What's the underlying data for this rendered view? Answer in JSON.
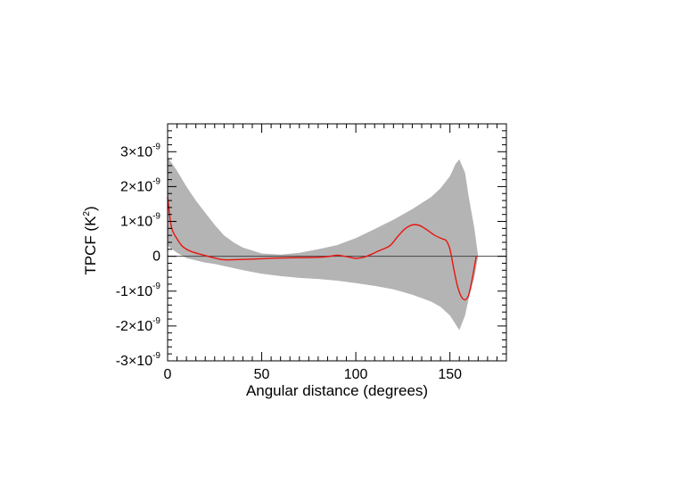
{
  "chart_data": {
    "type": "area",
    "xlabel": "Angular distance (degrees)",
    "ylabel": {
      "text": "TPCF (K",
      "sup": "2",
      "close": ")"
    },
    "xlim": [
      0,
      180
    ],
    "ylim": [
      -3e-09,
      3.8e-09
    ],
    "x_ticks": [
      {
        "value": 0,
        "label": "0"
      },
      {
        "value": 50,
        "label": "50"
      },
      {
        "value": 100,
        "label": "100"
      },
      {
        "value": 150,
        "label": "150"
      }
    ],
    "y_ticks": [
      {
        "value": 3e-09,
        "base": "3×10",
        "exp": "-9"
      },
      {
        "value": 2e-09,
        "base": "2×10",
        "exp": "-9"
      },
      {
        "value": 1e-09,
        "base": "1×10",
        "exp": "-9"
      },
      {
        "value": 0,
        "base": "0",
        "exp": ""
      },
      {
        "value": -1e-09,
        "base": "-1×10",
        "exp": "-9"
      },
      {
        "value": -2e-09,
        "base": "-2×10",
        "exp": "-9"
      },
      {
        "value": -3e-09,
        "base": "-3×10",
        "exp": "-9"
      }
    ],
    "zero_line": true,
    "colors": {
      "band": "#b4b4b4",
      "line": "#e8150f",
      "axis": "#000000",
      "zero_line": "#444444"
    },
    "band": {
      "x": [
        0,
        5,
        10,
        15,
        20,
        25,
        30,
        35,
        40,
        50,
        60,
        70,
        80,
        90,
        100,
        110,
        120,
        130,
        140,
        145,
        150,
        153,
        155,
        158,
        160,
        163,
        165
      ],
      "upper": [
        2.85e-09,
        2.45e-09,
        2e-09,
        1.6e-09,
        1.25e-09,
        9e-10,
        6e-10,
        4e-10,
        2.5e-10,
        8e-11,
        5e-11,
        1e-10,
        2e-10,
        3.2e-10,
        5.2e-10,
        7.8e-10,
        1.05e-09,
        1.35e-09,
        1.7e-09,
        1.95e-09,
        2.3e-09,
        2.65e-09,
        2.78e-09,
        2.4e-09,
        1.7e-09,
        8e-10,
        0.0
      ],
      "lower": [
        3e-10,
        1e-10,
        -5e-11,
        -1.2e-10,
        -1.8e-10,
        -2.2e-10,
        -2.8e-10,
        -3.4e-10,
        -4e-10,
        -5e-10,
        -5.7e-10,
        -6.2e-10,
        -6.5e-10,
        -7e-10,
        -7.7e-10,
        -8.5e-10,
        -9.5e-10,
        -1.1e-09,
        -1.3e-09,
        -1.45e-09,
        -1.7e-09,
        -1.95e-09,
        -2.12e-09,
        -1.7e-09,
        -1.2e-09,
        -6e-10,
        0.0
      ]
    },
    "series": [
      {
        "x": [
          0,
          2,
          5,
          8,
          12,
          18,
          25,
          30,
          40,
          50,
          60,
          70,
          80,
          85,
          90,
          93,
          97,
          100,
          104,
          108,
          112,
          118,
          122,
          126,
          130,
          134,
          138,
          142,
          146,
          148,
          150,
          152,
          154,
          156,
          158,
          160,
          162,
          164
        ],
        "y": [
          1.7e-09,
          8.5e-10,
          5e-10,
          2.8e-10,
          1.5e-10,
          5e-11,
          -5e-11,
          -1e-10,
          -9e-11,
          -7e-11,
          -5e-11,
          -4e-11,
          -3e-11,
          -1e-11,
          3e-11,
          1e-11,
          -3e-11,
          -6e-11,
          -3e-11,
          5e-11,
          1.5e-10,
          3e-10,
          5.5e-10,
          7.8e-10,
          9e-10,
          8.8e-10,
          7.5e-10,
          6e-10,
          5e-10,
          4.5e-10,
          2e-10,
          -3.5e-10,
          -8.5e-10,
          -1.15e-09,
          -1.25e-09,
          -1.1e-09,
          -6e-10,
          0.0
        ]
      }
    ]
  }
}
